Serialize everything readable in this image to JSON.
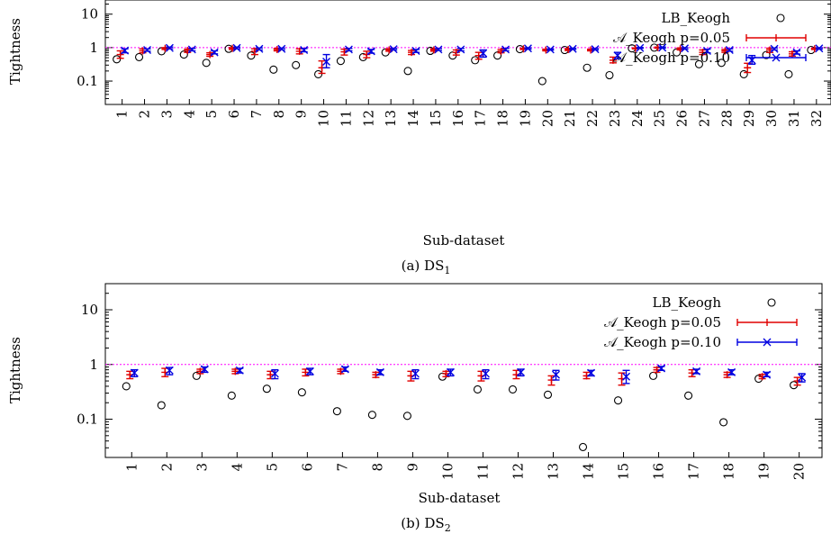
{
  "colors": {
    "ref_line": "#ff00ff",
    "series_p05": "#e00000",
    "series_p10": "#0000e0",
    "lb_keogh": "#000000"
  },
  "chart_data": [
    {
      "type": "scatter",
      "panel_caption": "(a) DS",
      "panel_caption_sub": "1",
      "xlabel": "Sub-dataset",
      "ylabel": "Tightness",
      "yscale": "log",
      "ylim": [
        0.02,
        30
      ],
      "yticks": [
        {
          "label": "0.1",
          "value": 0.1
        },
        {
          "label": "1",
          "value": 1
        },
        {
          "label": "10",
          "value": 10
        }
      ],
      "reference_line": 1,
      "categories": [
        "1",
        "2",
        "3",
        "4",
        "5",
        "6",
        "7",
        "8",
        "9",
        "10",
        "11",
        "12",
        "13",
        "14",
        "15",
        "16",
        "17",
        "18",
        "19",
        "20",
        "21",
        "22",
        "23",
        "24",
        "25",
        "26",
        "27",
        "28",
        "29",
        "30",
        "31",
        "32"
      ],
      "legend": [
        "LB_Keogh",
        "𝒜_Keogh p=0.05",
        "𝒜_Keogh p=0.10"
      ],
      "series": [
        {
          "name": "LB_Keogh",
          "marker": "circle",
          "values": [
            0.45,
            0.52,
            0.78,
            0.62,
            0.35,
            0.92,
            0.58,
            0.22,
            0.3,
            0.16,
            0.4,
            0.52,
            0.72,
            0.2,
            0.8,
            0.58,
            0.42,
            0.58,
            0.9,
            0.1,
            0.85,
            0.25,
            0.15,
            0.95,
            1.0,
            0.72,
            0.32,
            0.35,
            0.16,
            0.6,
            0.16,
            0.85
          ]
        },
        {
          "name": "𝒜_Keogh p=0.05",
          "marker": "plus",
          "values": [
            0.62,
            0.8,
            0.95,
            0.82,
            0.62,
            0.95,
            0.78,
            0.88,
            0.78,
            0.25,
            0.75,
            0.62,
            0.85,
            0.72,
            0.85,
            0.72,
            0.58,
            0.78,
            0.92,
            0.85,
            0.88,
            0.85,
            0.42,
            0.95,
            1.0,
            0.92,
            0.72,
            0.8,
            0.25,
            0.85,
            0.65,
            0.92
          ],
          "low": [
            0.48,
            0.7,
            0.88,
            0.72,
            0.55,
            0.88,
            0.62,
            0.8,
            0.65,
            0.17,
            0.6,
            0.5,
            0.78,
            0.62,
            0.78,
            0.6,
            0.45,
            0.7,
            0.88,
            0.8,
            0.82,
            0.8,
            0.35,
            0.92,
            0.96,
            0.85,
            0.62,
            0.72,
            0.18,
            0.72,
            0.56,
            0.88
          ],
          "high": [
            0.8,
            0.92,
            1.0,
            0.9,
            0.7,
            1.0,
            0.92,
            0.95,
            0.92,
            0.4,
            0.9,
            0.78,
            0.92,
            0.82,
            0.92,
            0.85,
            0.72,
            0.88,
            0.96,
            0.9,
            0.94,
            0.9,
            0.52,
            0.98,
            1.04,
            0.98,
            0.85,
            0.88,
            0.34,
            0.96,
            0.75,
            0.96
          ]
        },
        {
          "name": "𝒜_Keogh p=0.10",
          "marker": "cross",
          "values": [
            0.82,
            0.85,
            0.98,
            0.88,
            0.72,
            0.98,
            0.92,
            0.92,
            0.85,
            0.38,
            0.88,
            0.78,
            0.9,
            0.8,
            0.88,
            0.88,
            0.68,
            0.88,
            0.95,
            0.88,
            0.92,
            0.9,
            0.58,
            0.98,
            1.0,
            0.95,
            0.8,
            0.85,
            0.42,
            0.92,
            0.72,
            0.95
          ],
          "low": [
            0.7,
            0.78,
            0.92,
            0.8,
            0.65,
            0.92,
            0.85,
            0.86,
            0.75,
            0.25,
            0.8,
            0.68,
            0.85,
            0.72,
            0.82,
            0.8,
            0.52,
            0.8,
            0.9,
            0.84,
            0.88,
            0.85,
            0.46,
            0.95,
            0.96,
            0.9,
            0.7,
            0.78,
            0.32,
            0.85,
            0.64,
            0.9
          ],
          "high": [
            0.92,
            0.92,
            1.04,
            0.95,
            0.8,
            1.04,
            0.98,
            0.97,
            0.94,
            0.62,
            0.95,
            0.88,
            0.95,
            0.88,
            0.94,
            0.95,
            0.85,
            0.95,
            0.99,
            0.92,
            0.96,
            0.94,
            0.72,
            1.01,
            1.04,
            1.0,
            0.9,
            0.92,
            0.58,
            0.98,
            0.8,
            0.99
          ]
        }
      ]
    },
    {
      "type": "scatter",
      "panel_caption": "(b) DS",
      "panel_caption_sub": "2",
      "xlabel": "Sub-dataset",
      "ylabel": "Tightness",
      "yscale": "log",
      "ylim": [
        0.02,
        30
      ],
      "yticks": [
        {
          "label": "0.1",
          "value": 0.1
        },
        {
          "label": "1",
          "value": 1
        },
        {
          "label": "10",
          "value": 10
        }
      ],
      "reference_line": 1,
      "categories": [
        "1",
        "2",
        "3",
        "4",
        "5",
        "6",
        "7",
        "8",
        "9",
        "10",
        "11",
        "12",
        "13",
        "14",
        "15",
        "16",
        "17",
        "18",
        "19",
        "20"
      ],
      "legend": [
        "LB_Keogh",
        "𝒜_Keogh p=0.05",
        "𝒜_Keogh p=0.10"
      ],
      "series": [
        {
          "name": "LB_Keogh",
          "marker": "circle",
          "values": [
            0.4,
            0.18,
            0.62,
            0.27,
            0.36,
            0.31,
            0.14,
            0.12,
            0.115,
            0.6,
            0.35,
            0.35,
            0.28,
            0.031,
            0.22,
            0.62,
            0.27,
            0.088,
            0.55,
            0.42
          ]
        },
        {
          "name": "𝒜_Keogh p=0.05",
          "marker": "plus",
          "values": [
            0.65,
            0.72,
            0.75,
            0.75,
            0.65,
            0.72,
            0.75,
            0.65,
            0.62,
            0.68,
            0.62,
            0.65,
            0.52,
            0.62,
            0.55,
            0.8,
            0.7,
            0.65,
            0.6,
            0.5
          ],
          "low": [
            0.55,
            0.6,
            0.68,
            0.68,
            0.55,
            0.62,
            0.68,
            0.58,
            0.5,
            0.6,
            0.5,
            0.55,
            0.42,
            0.55,
            0.42,
            0.72,
            0.6,
            0.58,
            0.55,
            0.42
          ],
          "high": [
            0.75,
            0.85,
            0.82,
            0.82,
            0.75,
            0.82,
            0.82,
            0.72,
            0.75,
            0.75,
            0.75,
            0.78,
            0.62,
            0.72,
            0.7,
            0.88,
            0.8,
            0.72,
            0.66,
            0.58
          ]
        },
        {
          "name": "𝒜_Keogh p=0.10",
          "marker": "cross",
          "values": [
            0.7,
            0.78,
            0.82,
            0.78,
            0.68,
            0.75,
            0.82,
            0.72,
            0.68,
            0.72,
            0.68,
            0.72,
            0.65,
            0.7,
            0.6,
            0.85,
            0.75,
            0.72,
            0.65,
            0.58
          ],
          "low": [
            0.6,
            0.65,
            0.72,
            0.7,
            0.55,
            0.65,
            0.75,
            0.65,
            0.55,
            0.62,
            0.55,
            0.62,
            0.52,
            0.62,
            0.45,
            0.78,
            0.68,
            0.65,
            0.6,
            0.48
          ],
          "high": [
            0.8,
            0.88,
            0.9,
            0.85,
            0.8,
            0.85,
            0.9,
            0.8,
            0.8,
            0.82,
            0.8,
            0.82,
            0.78,
            0.78,
            0.78,
            0.92,
            0.82,
            0.8,
            0.72,
            0.68
          ]
        }
      ]
    }
  ]
}
